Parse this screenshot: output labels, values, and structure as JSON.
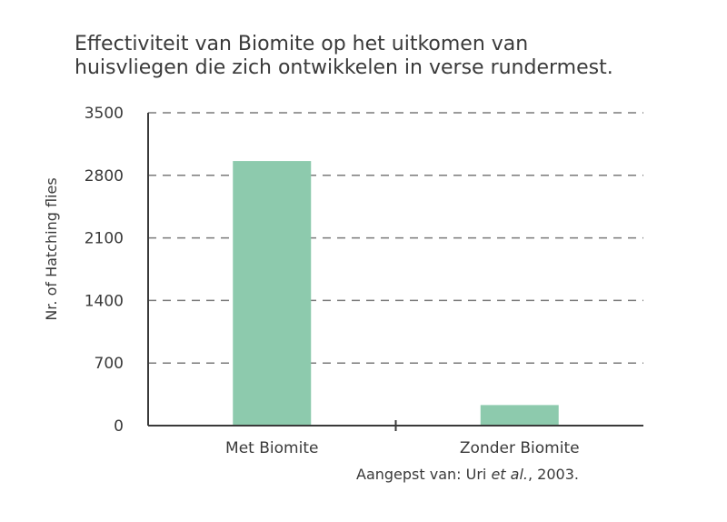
{
  "title_lines": [
    "Effectiviteit van Biomite op het uitkomen van",
    "huisvliegen die zich ontwikkelen in verse rundermest."
  ],
  "source": {
    "prefix": "Aangepst van: Uri ",
    "italic": "et al.",
    "suffix": ", 2003."
  },
  "colors": {
    "bar": "#8dcaad",
    "axis": "#3a3a3a",
    "grid": "#7a7a7a"
  },
  "chart_data": {
    "type": "bar",
    "title": "Effectiviteit van Biomite op het uitkomen van huisvliegen die zich ontwikkelen in verse rundermest.",
    "categories": [
      "Met Biomite",
      "Zonder Biomite"
    ],
    "values": [
      2960,
      230
    ],
    "xlabel": "",
    "ylabel": "Nr. of Hatching flies",
    "ylim": [
      0,
      3500
    ],
    "yticks": [
      0,
      700,
      1400,
      2100,
      2800,
      3500
    ],
    "grid": true,
    "grid_style": "dashed",
    "legend": "none"
  }
}
